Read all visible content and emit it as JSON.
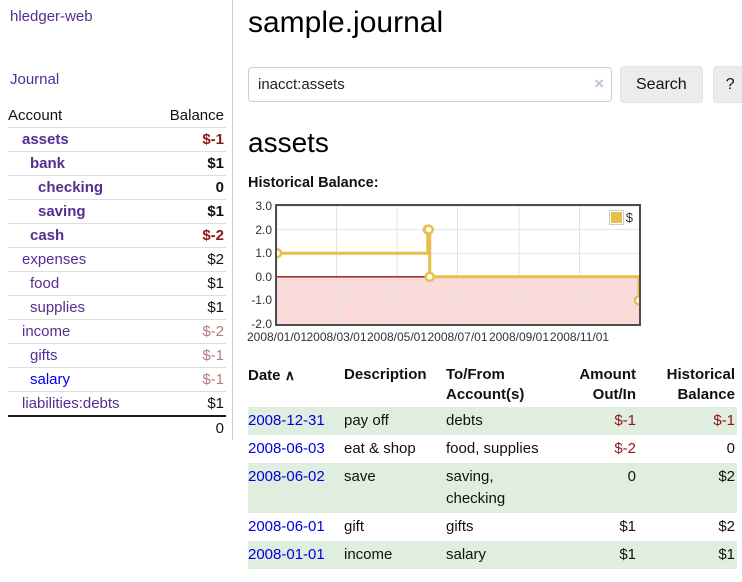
{
  "app": {
    "brand": "hledger-web"
  },
  "sidebar": {
    "nav": {
      "journal": "Journal"
    },
    "table": {
      "account_header": "Account",
      "balance_header": "Balance"
    },
    "accounts": [
      {
        "name": "assets",
        "balance": "$-1",
        "indent": 0,
        "bold": true,
        "neg": "strong"
      },
      {
        "name": "bank",
        "balance": "$1",
        "indent": 1,
        "bold": true,
        "neg": "none"
      },
      {
        "name": "checking",
        "balance": "0",
        "indent": 2,
        "bold": true,
        "neg": "none"
      },
      {
        "name": "saving",
        "balance": "$1",
        "indent": 2,
        "bold": true,
        "neg": "none"
      },
      {
        "name": "cash",
        "balance": "$-2",
        "indent": 1,
        "bold": true,
        "neg": "strong"
      },
      {
        "name": "expenses",
        "balance": "$2",
        "indent": 0,
        "bold": false,
        "neg": "none"
      },
      {
        "name": "food",
        "balance": "$1",
        "indent": 1,
        "bold": false,
        "neg": "none"
      },
      {
        "name": "supplies",
        "balance": "$1",
        "indent": 1,
        "bold": false,
        "neg": "none"
      },
      {
        "name": "income",
        "balance": "$-2",
        "indent": 0,
        "bold": false,
        "neg": "muted"
      },
      {
        "name": "gifts",
        "balance": "$-1",
        "indent": 1,
        "bold": false,
        "neg": "muted"
      },
      {
        "name": "salary",
        "balance": "$-1",
        "indent": 1,
        "bold": false,
        "neg": "muted",
        "link_color": "blue"
      },
      {
        "name": "liabilities:debts",
        "balance": "$1",
        "indent": 0,
        "bold": false,
        "neg": "none"
      }
    ],
    "total": "0"
  },
  "main": {
    "title": "sample.journal",
    "search": {
      "value": "inacct:assets",
      "clear_icon": "×",
      "search_button": "Search",
      "help_button": "?"
    },
    "account_heading": "assets",
    "section_label": "Historical Balance:"
  },
  "chart_data": {
    "type": "line",
    "title": "Historical Balance",
    "x_range": [
      "2008-01-01",
      "2008-12-31"
    ],
    "ylim": [
      -2,
      3
    ],
    "x_ticks": [
      {
        "date": "2008-01-01",
        "label": "2008/01/01"
      },
      {
        "date": "2008-03-01",
        "label": "2008/03/01"
      },
      {
        "date": "2008-05-01",
        "label": "2008/05/01"
      },
      {
        "date": "2008-07-01",
        "label": "2008/07/01"
      },
      {
        "date": "2008-09-01",
        "label": "2008/09/01"
      },
      {
        "date": "2008-11-01",
        "label": "2008/11/01"
      }
    ],
    "y_ticks": [
      3,
      2,
      1,
      0,
      -1,
      -2
    ],
    "series": [
      {
        "name": "$",
        "color": "#e6c04a",
        "marker_fill": "#ffffff",
        "step": true,
        "points": [
          [
            "2008-01-01",
            1
          ],
          [
            "2008-06-01",
            2
          ],
          [
            "2008-06-02",
            2
          ],
          [
            "2008-06-03",
            0
          ],
          [
            "2008-12-31",
            -1
          ]
        ]
      }
    ],
    "grid_color": "#e3e3e3",
    "zero_line_color": "#991111",
    "negative_region_color": "#fbdada",
    "legend": {
      "label": "$",
      "position": "top-right"
    }
  },
  "register": {
    "headers": {
      "date": "Date",
      "sort_icon": "∧",
      "description": "Description",
      "accounts": "To/From Account(s)",
      "amount": "Amount Out/In",
      "balance": "Historical Balance"
    },
    "rows": [
      {
        "date": "2008-12-31",
        "description": "pay off",
        "accounts": "debts",
        "amount": "$-1",
        "balance": "$-1"
      },
      {
        "date": "2008-06-03",
        "description": "eat & shop",
        "accounts": "food, supplies",
        "amount": "$-2",
        "balance": "0"
      },
      {
        "date": "2008-06-02",
        "description": "save",
        "accounts": "saving, checking",
        "amount": "0",
        "balance": "$2"
      },
      {
        "date": "2008-06-01",
        "description": "gift",
        "accounts": "gifts",
        "amount": "$1",
        "balance": "$2"
      },
      {
        "date": "2008-01-01",
        "description": "income",
        "accounts": "salary",
        "amount": "$1",
        "balance": "$1"
      }
    ]
  }
}
